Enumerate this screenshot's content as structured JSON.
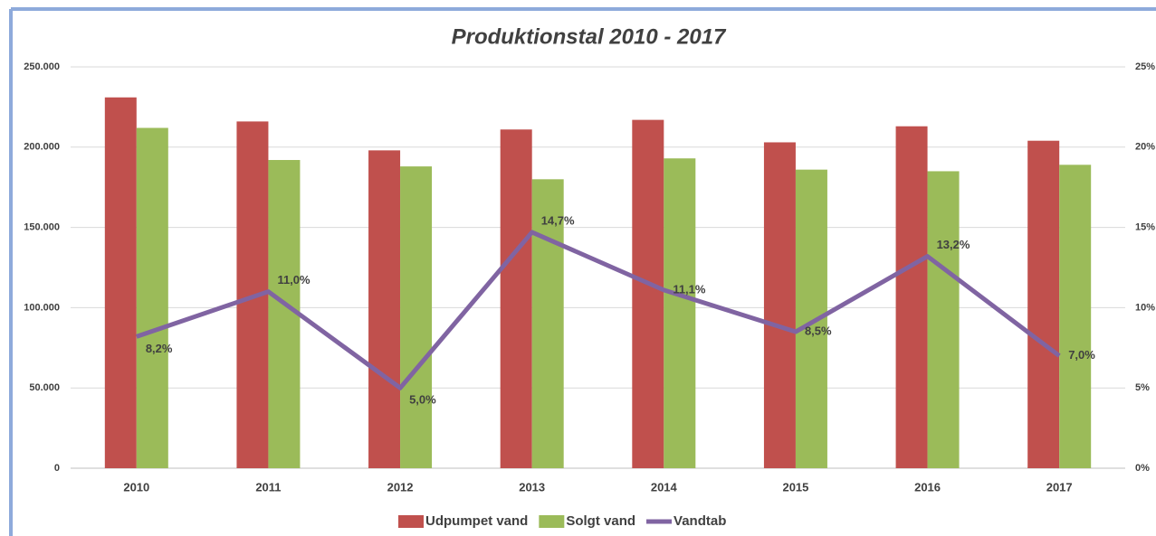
{
  "chart_data": {
    "type": "bar",
    "title": "Produktionstal 2010 - 2017",
    "categories": [
      "2010",
      "2011",
      "2012",
      "2013",
      "2014",
      "2015",
      "2016",
      "2017"
    ],
    "series": [
      {
        "name": "Udpumpet vand",
        "color": "#c0504d",
        "values": [
          231000,
          216000,
          198000,
          211000,
          217000,
          203000,
          213000,
          204000
        ]
      },
      {
        "name": "Solgt vand",
        "color": "#9bbb59",
        "values": [
          212000,
          192000,
          188000,
          180000,
          193000,
          186000,
          185000,
          189000
        ]
      },
      {
        "name": "Vandtab",
        "type": "line",
        "axis": "y2",
        "color": "#8064a2",
        "values": [
          8.2,
          11.0,
          5.0,
          14.7,
          11.1,
          8.5,
          13.2,
          7.0
        ],
        "value_labels": [
          "8,2%",
          "11,0%",
          "5,0%",
          "14,7%",
          "11,1%",
          "8,5%",
          "13,2%",
          "7,0%"
        ]
      }
    ],
    "ylim": [
      0,
      250000
    ],
    "yticks": [
      0,
      {
        "value": 50000,
        "label": "50.000"
      },
      {
        "value": 100000,
        "label": "100.000"
      },
      {
        "value": 150000,
        "label": "150.000"
      },
      {
        "value": 200000,
        "label": "200.000"
      },
      {
        "value": 250000,
        "label": "250.000"
      }
    ],
    "y2lim": [
      0,
      25
    ],
    "y2ticks": [
      {
        "value": 0,
        "label": "0%"
      },
      {
        "value": 5,
        "label": "5%"
      },
      {
        "value": 10,
        "label": "10%"
      },
      {
        "value": 15,
        "label": "15%"
      },
      {
        "value": 20,
        "label": "20%"
      },
      {
        "value": 25,
        "label": "25%"
      }
    ],
    "grid": true
  }
}
